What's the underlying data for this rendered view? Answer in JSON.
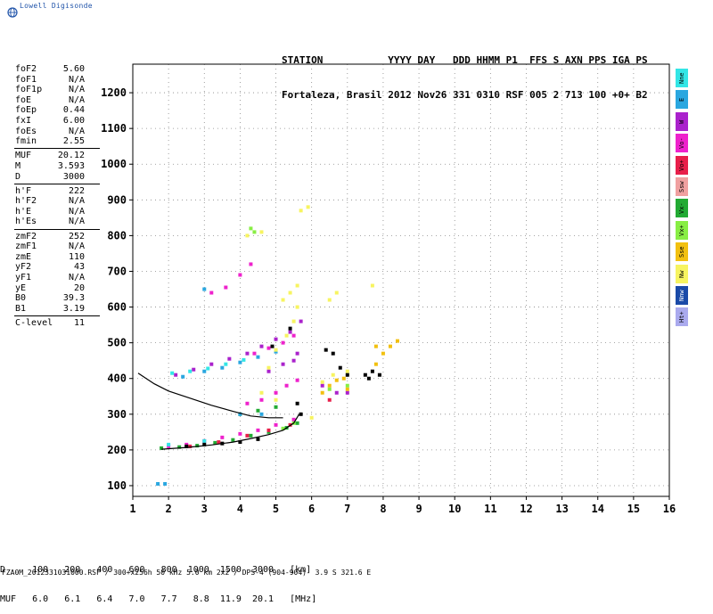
{
  "app": {
    "brand": "Lowell Digisonde"
  },
  "header": {
    "line1": "STATION           YYYY DAY   DDD HHMM P1  FFS S AXN PPS IGA PS",
    "line2": "Fortaleza, Brasil 2012 Nov26 331 0310 RSF 005 2 713 100 +0+ B2"
  },
  "params": [
    {
      "name": "foF2",
      "value": "5.60"
    },
    {
      "name": "foF1",
      "value": "N/A"
    },
    {
      "name": "foF1p",
      "value": "N/A"
    },
    {
      "name": "foE",
      "value": "N/A"
    },
    {
      "name": "foEp",
      "value": "0.44"
    },
    {
      "name": "fxI",
      "value": "6.00"
    },
    {
      "name": "foEs",
      "value": "N/A"
    },
    {
      "name": "fmin",
      "value": "2.55"
    },
    {
      "name": "MUF",
      "value": "20.12"
    },
    {
      "name": "M",
      "value": "3.593"
    },
    {
      "name": "D",
      "value": "3000"
    },
    {
      "name": "h'F",
      "value": "222"
    },
    {
      "name": "h'F2",
      "value": "N/A"
    },
    {
      "name": "h'E",
      "value": "N/A"
    },
    {
      "name": "h'Es",
      "value": "N/A"
    },
    {
      "name": "zmF2",
      "value": "252"
    },
    {
      "name": "zmF1",
      "value": "N/A"
    },
    {
      "name": "zmE",
      "value": "110"
    },
    {
      "name": "yF2",
      "value": "43"
    },
    {
      "name": "yF1",
      "value": "N/A"
    },
    {
      "name": "yE",
      "value": "20"
    },
    {
      "name": "B0",
      "value": "39.3"
    },
    {
      "name": "B1",
      "value": "3.19"
    },
    {
      "name": "C-level",
      "value": "11"
    }
  ],
  "legend": [
    {
      "label": "Nne",
      "color": "#33e6e6"
    },
    {
      "label": "E",
      "color": "#2aa7e0"
    },
    {
      "label": "W",
      "color": "#aa22cc"
    },
    {
      "label": "Vo-",
      "color": "#ee22cc"
    },
    {
      "label": "Vo+",
      "color": "#e81f4a"
    },
    {
      "label": "Ssw",
      "color": "#f0a0a0"
    },
    {
      "label": "Vx-",
      "color": "#22aa33"
    },
    {
      "label": "Vx+",
      "color": "#88ee44"
    },
    {
      "label": "Sse",
      "color": "#f2c010"
    },
    {
      "label": "Nw",
      "color": "#f7f460"
    },
    {
      "label": "Nnw",
      "color": "#1a4aa8"
    },
    {
      "label": "Ht+",
      "color": "#aaaaee"
    }
  ],
  "table": {
    "row1": "D     100   200   400   600   800  1000  1500  3000   [km]",
    "row2": "MUF   6.0   6.1   6.4   7.0   7.7   8.8  11.9  20.1   [MHz]"
  },
  "footer": "FZA0M_2012331031000.RSF / 300+x256h 50 kHz 5.0 km 2x2 / DPS-4 (904-904)  3.9 S 321.6 E",
  "chart_data": {
    "type": "scatter",
    "title": "",
    "xlabel": "",
    "ylabel": "",
    "xlim": [
      1,
      16
    ],
    "ylim": [
      70,
      1280
    ],
    "xticks": [
      1,
      2,
      3,
      4,
      5,
      6,
      7,
      8,
      9,
      10,
      11,
      12,
      13,
      14,
      15,
      16
    ],
    "yticks": [
      100,
      200,
      300,
      400,
      500,
      600,
      700,
      800,
      900,
      1000,
      1100,
      1200
    ],
    "grid": true,
    "series": [
      {
        "color": "#ee22cc",
        "points": [
          [
            2.0,
            210
          ],
          [
            2.5,
            215
          ],
          [
            3.0,
            225
          ],
          [
            3.5,
            235
          ],
          [
            4.0,
            245
          ],
          [
            4.5,
            255
          ],
          [
            5.0,
            270
          ],
          [
            5.5,
            285
          ],
          [
            4.2,
            330
          ],
          [
            4.6,
            340
          ],
          [
            5.0,
            360
          ],
          [
            5.3,
            380
          ],
          [
            5.6,
            395
          ],
          [
            4.4,
            470
          ],
          [
            4.8,
            485
          ],
          [
            5.2,
            500
          ],
          [
            5.5,
            520
          ],
          [
            3.2,
            640
          ],
          [
            3.6,
            655
          ],
          [
            4.0,
            690
          ],
          [
            4.3,
            720
          ]
        ]
      },
      {
        "color": "#aa22cc",
        "points": [
          [
            2.2,
            410
          ],
          [
            2.7,
            425
          ],
          [
            3.2,
            440
          ],
          [
            3.7,
            455
          ],
          [
            4.2,
            470
          ],
          [
            4.6,
            490
          ],
          [
            5.0,
            510
          ],
          [
            5.4,
            530
          ],
          [
            5.7,
            560
          ],
          [
            4.8,
            420
          ],
          [
            5.2,
            440
          ],
          [
            5.5,
            450
          ],
          [
            5.6,
            470
          ],
          [
            6.3,
            380
          ],
          [
            6.7,
            360
          ],
          [
            7.0,
            360
          ]
        ]
      },
      {
        "color": "#22aa33",
        "points": [
          [
            1.8,
            205
          ],
          [
            2.3,
            208
          ],
          [
            2.8,
            212
          ],
          [
            3.3,
            220
          ],
          [
            3.8,
            228
          ],
          [
            4.3,
            240
          ],
          [
            4.8,
            250
          ],
          [
            5.3,
            262
          ],
          [
            5.6,
            275
          ],
          [
            4.0,
            300
          ],
          [
            4.5,
            310
          ],
          [
            5.0,
            320
          ]
        ]
      },
      {
        "color": "#2aa7e0",
        "points": [
          [
            1.7,
            105
          ],
          [
            1.9,
            105
          ],
          [
            2.4,
            405
          ],
          [
            3.0,
            420
          ],
          [
            3.5,
            430
          ],
          [
            4.0,
            445
          ],
          [
            4.5,
            460
          ],
          [
            5.0,
            475
          ],
          [
            3.0,
            650
          ],
          [
            4.0,
            300
          ],
          [
            4.6,
            300
          ]
        ]
      },
      {
        "color": "#33e6e6",
        "points": [
          [
            2.1,
            415
          ],
          [
            2.6,
            420
          ],
          [
            3.1,
            428
          ],
          [
            3.6,
            440
          ],
          [
            4.1,
            452
          ],
          [
            2.0,
            215
          ],
          [
            3.0,
            225
          ]
        ]
      },
      {
        "color": "#e81f4a",
        "points": [
          [
            2.6,
            210
          ],
          [
            3.4,
            222
          ],
          [
            4.2,
            240
          ],
          [
            4.8,
            255
          ],
          [
            5.4,
            270
          ],
          [
            6.5,
            340
          ]
        ]
      },
      {
        "color": "#f2c010",
        "points": [
          [
            6.3,
            360
          ],
          [
            6.5,
            380
          ],
          [
            6.7,
            395
          ],
          [
            6.9,
            400
          ],
          [
            7.0,
            370
          ],
          [
            7.8,
            440
          ],
          [
            8.0,
            470
          ],
          [
            8.2,
            490
          ],
          [
            8.4,
            505
          ],
          [
            7.8,
            490
          ]
        ]
      },
      {
        "color": "#f7f460",
        "points": [
          [
            5.0,
            480
          ],
          [
            5.3,
            520
          ],
          [
            5.5,
            560
          ],
          [
            5.6,
            600
          ],
          [
            5.2,
            620
          ],
          [
            5.4,
            640
          ],
          [
            5.6,
            660
          ],
          [
            4.6,
            360
          ],
          [
            5.0,
            340
          ],
          [
            4.8,
            430
          ],
          [
            6.7,
            640
          ],
          [
            6.5,
            620
          ],
          [
            7.7,
            660
          ],
          [
            4.2,
            800
          ],
          [
            4.6,
            810
          ],
          [
            5.7,
            870
          ],
          [
            5.9,
            880
          ],
          [
            6.3,
            390
          ],
          [
            6.6,
            410
          ],
          [
            7.0,
            420
          ],
          [
            6.0,
            290
          ]
        ]
      },
      {
        "color": "#000000",
        "points": [
          [
            2.5,
            210
          ],
          [
            3.0,
            215
          ],
          [
            3.5,
            218
          ],
          [
            4.0,
            222
          ],
          [
            4.5,
            230
          ],
          [
            5.6,
            330
          ],
          [
            5.7,
            300
          ],
          [
            6.4,
            480
          ],
          [
            6.6,
            470
          ],
          [
            6.8,
            430
          ],
          [
            7.0,
            410
          ],
          [
            7.5,
            410
          ],
          [
            7.7,
            420
          ],
          [
            7.9,
            410
          ],
          [
            7.6,
            400
          ],
          [
            4.9,
            490
          ],
          [
            5.4,
            540
          ]
        ]
      },
      {
        "color": "#88ee44",
        "points": [
          [
            4.3,
            820
          ],
          [
            4.4,
            810
          ],
          [
            6.5,
            370
          ],
          [
            7.0,
            380
          ],
          [
            5.2,
            260
          ],
          [
            5.5,
            275
          ]
        ]
      }
    ],
    "curves": [
      {
        "name": "profile-upper",
        "color": "#000000",
        "points": [
          [
            1.15,
            415
          ],
          [
            1.6,
            385
          ],
          [
            2.0,
            365
          ],
          [
            2.6,
            345
          ],
          [
            3.2,
            325
          ],
          [
            3.8,
            308
          ],
          [
            4.3,
            295
          ],
          [
            4.8,
            290
          ],
          [
            5.2,
            290
          ]
        ]
      },
      {
        "name": "profile-lower",
        "color": "#000000",
        "points": [
          [
            1.8,
            202
          ],
          [
            2.5,
            207
          ],
          [
            3.2,
            214
          ],
          [
            3.8,
            222
          ],
          [
            4.3,
            232
          ],
          [
            4.8,
            243
          ],
          [
            5.2,
            255
          ],
          [
            5.5,
            275
          ],
          [
            5.65,
            300
          ]
        ]
      }
    ]
  }
}
